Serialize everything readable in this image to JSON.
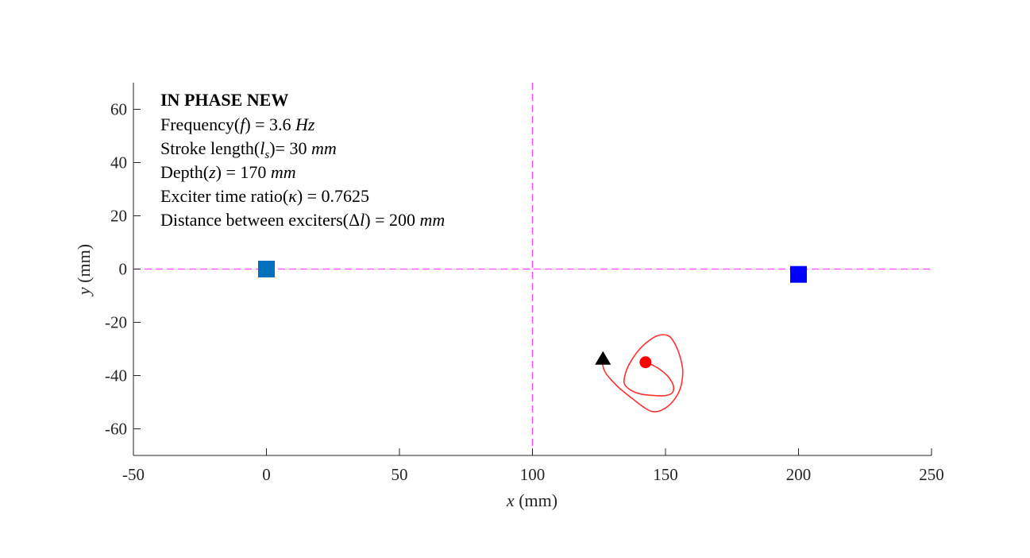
{
  "chart_data": {
    "type": "scatter",
    "xlabel": "x (mm)",
    "ylabel": "y (mm)",
    "xlim": [
      -50,
      250
    ],
    "ylim": [
      -70,
      70
    ],
    "x_ticks": [
      -50,
      0,
      50,
      100,
      150,
      200,
      250
    ],
    "y_ticks": [
      60,
      40,
      20,
      0,
      -20,
      -40,
      -60
    ],
    "grid": false,
    "annotation": {
      "title": "IN PHASE NEW",
      "lines": [
        "Frequency(f) = 3.6 Hz",
        "Stroke length(ls)= 30 mm",
        "Depth(z) = 170 mm",
        "Exciter time ratio(κ) = 0.7625",
        "Distance between exciters(Δl) = 200 mm"
      ]
    },
    "reference_lines": [
      {
        "orientation": "horizontal",
        "y": 0,
        "color": "#ff44ff",
        "style": "dashed"
      },
      {
        "orientation": "vertical",
        "x": 100,
        "color": "#ff44ff",
        "style": "dashed"
      }
    ],
    "exciters": [
      {
        "x": 0,
        "y": 0,
        "marker": "square",
        "color": "#0072bd"
      },
      {
        "x": 200,
        "y": -2,
        "marker": "square",
        "color": "#0000ff"
      }
    ],
    "trajectory": {
      "color": "#ff3030",
      "points": [
        [
          142.5,
          -35
        ],
        [
          146,
          -36.5
        ],
        [
          149,
          -38.5
        ],
        [
          151.5,
          -41
        ],
        [
          153,
          -44
        ],
        [
          152.5,
          -46.5
        ],
        [
          150,
          -47.5
        ],
        [
          146,
          -47.5
        ],
        [
          141,
          -47
        ],
        [
          137,
          -45.5
        ],
        [
          134.5,
          -43
        ],
        [
          135,
          -39
        ],
        [
          136.5,
          -35.5
        ],
        [
          139.5,
          -31
        ],
        [
          143,
          -27.5
        ],
        [
          147,
          -25
        ],
        [
          151,
          -25
        ],
        [
          153.5,
          -28
        ],
        [
          155.5,
          -33
        ],
        [
          156.5,
          -38.5
        ],
        [
          155.5,
          -45
        ],
        [
          152.5,
          -50
        ],
        [
          148.5,
          -53
        ],
        [
          145,
          -53.5
        ],
        [
          142,
          -52
        ],
        [
          138,
          -49
        ],
        [
          133,
          -45
        ],
        [
          129.5,
          -41.5
        ],
        [
          127.5,
          -39
        ],
        [
          126.5,
          -36.5
        ],
        [
          126.5,
          -34
        ]
      ],
      "start": {
        "x": 142.5,
        "y": -35,
        "marker": "circle",
        "color": "#ff0000"
      },
      "end": {
        "x": 126.5,
        "y": -33.5,
        "marker": "triangle",
        "color": "#000000"
      }
    }
  }
}
